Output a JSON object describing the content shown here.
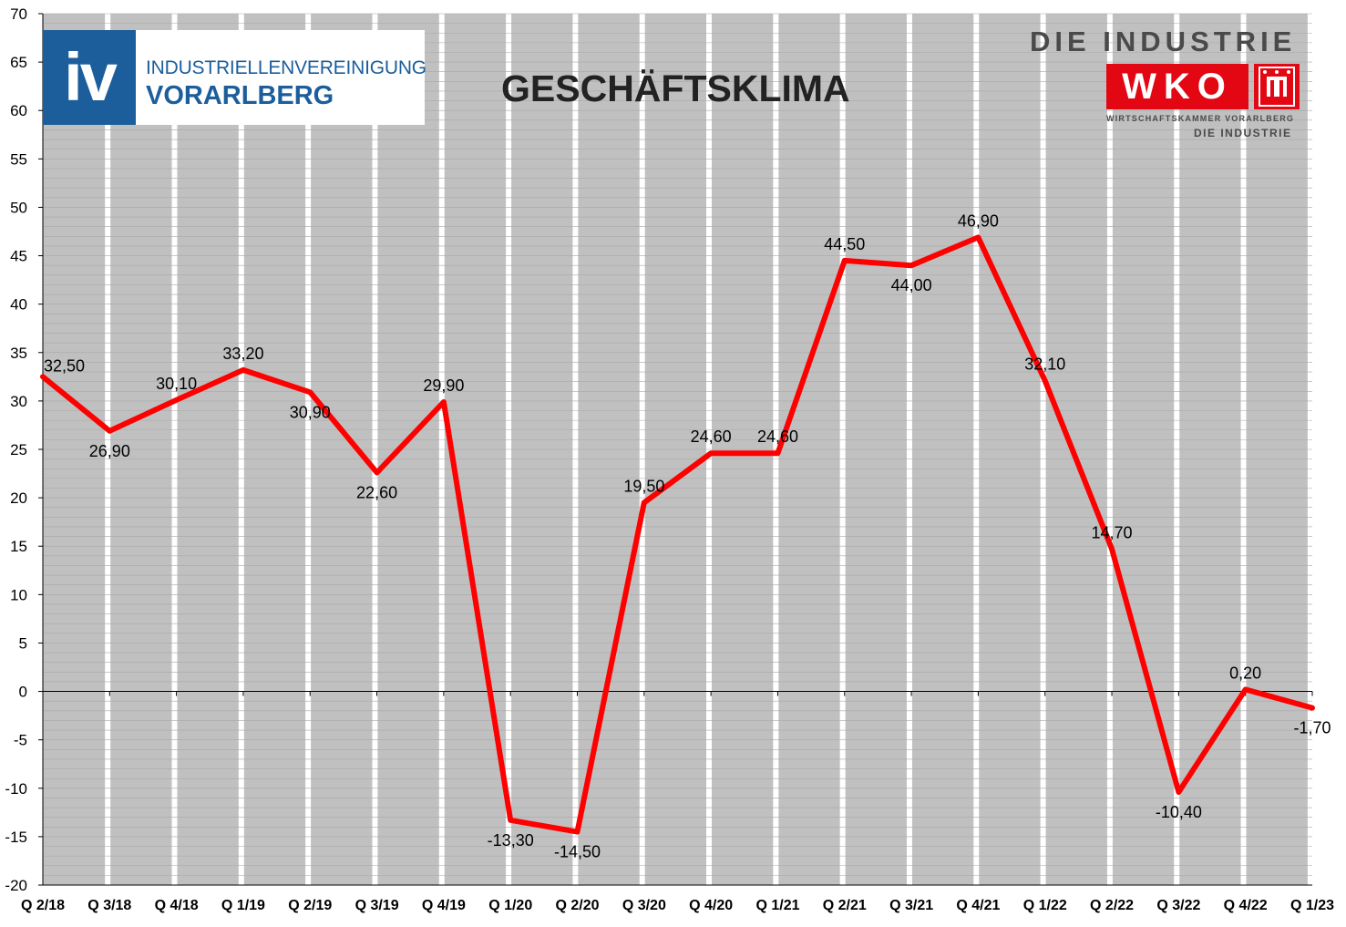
{
  "chart_data": {
    "type": "line",
    "title": "GESCHÄFTSKLIMA",
    "categories": [
      "Q 2/18",
      "Q 3/18",
      "Q 4/18",
      "Q 1/19",
      "Q 2/19",
      "Q 3/19",
      "Q 4/19",
      "Q 1/20",
      "Q 2/20",
      "Q 3/20",
      "Q 4/20",
      "Q 1/21",
      "Q 2/21",
      "Q 3/21",
      "Q 4/21",
      "Q 1/22",
      "Q 2/22",
      "Q 3/22",
      "Q 4/22",
      "Q 1/23"
    ],
    "series": [
      {
        "values": [
          32.5,
          26.9,
          30.1,
          33.2,
          30.9,
          22.6,
          29.9,
          -13.3,
          -14.5,
          19.5,
          24.6,
          24.6,
          44.5,
          44.0,
          46.9,
          32.1,
          14.7,
          -10.4,
          0.2,
          -1.7
        ],
        "color": "#ff0000"
      }
    ],
    "data_labels": [
      "32,50",
      "26,90",
      "30,10",
      "33,20",
      "30,90",
      "22,60",
      "29,90",
      "-13,30",
      "-14,50",
      "19,50",
      "24,60",
      "24,60",
      "44,50",
      "44,00",
      "46,90",
      "32,10",
      "14,70",
      "-10,40",
      "0,20",
      "-1,70"
    ],
    "label_placement": [
      "right",
      "below",
      "above",
      "above",
      "below",
      "below",
      "above",
      "below",
      "below",
      "above",
      "above",
      "above",
      "above",
      "below",
      "above",
      "above",
      "above",
      "below",
      "above",
      "below"
    ],
    "ylim": [
      -20,
      70
    ],
    "y_ticks": [
      70,
      65,
      60,
      55,
      50,
      45,
      40,
      35,
      30,
      25,
      20,
      15,
      10,
      5,
      0,
      -5,
      -10,
      -15,
      -20
    ],
    "y_tick_labels": [
      "70",
      "65",
      "60",
      "55",
      "50",
      "45",
      "40",
      "35",
      "30",
      "25",
      "20",
      "15",
      "10",
      "5",
      "0",
      "-5",
      "-10",
      "-15",
      "-20"
    ],
    "grid": true,
    "plot_background": "#c0c0c0",
    "xlabel": "",
    "ylabel": ""
  },
  "logos": {
    "iv": {
      "mark": "iv",
      "line1": "INDUSTRIELLENVEREINIGUNG",
      "line2": "VORARLBERG",
      "color": "#1c5e9b"
    },
    "wko": {
      "top": "DIE INDUSTRIE",
      "mark": "WKO",
      "sub1": "WIRTSCHAFTSKAMMER VORARLBERG",
      "sub2": "DIE INDUSTRIE",
      "color": "#e30613"
    }
  }
}
